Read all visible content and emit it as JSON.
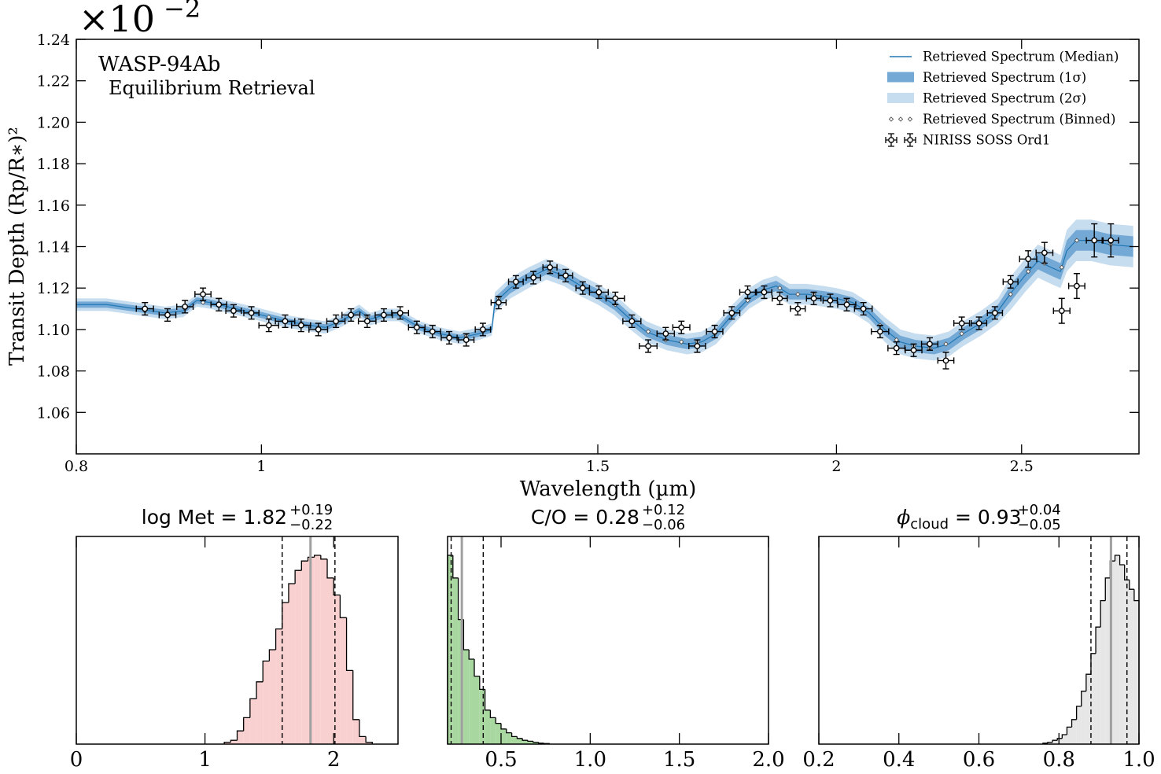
{
  "chart_data": [
    {
      "type": "line",
      "title": "WASP-94Ab",
      "subtitle": "Equilibrium Retrieval",
      "xlabel": "Wavelength (µm)",
      "ylabel": "Transit Depth (Rp/R∗)²",
      "y_offset_base": "×10",
      "y_offset_exponent": "−2",
      "xscale": "log",
      "xlim": [
        0.8,
        2.88
      ],
      "xticks": [
        0.8,
        1,
        1.5,
        2,
        2.5
      ],
      "ylim": [
        1.04,
        1.24
      ],
      "yticks": [
        1.06,
        1.08,
        {
          "value": 1.1,
          "label": "1.10"
        },
        1.12,
        1.14,
        1.16,
        1.18,
        {
          "value": 1.2,
          "label": "1.20"
        },
        1.22,
        1.24
      ],
      "legend": "upper right",
      "x": [
        0.8,
        0.83,
        0.86,
        0.89,
        0.91,
        0.925,
        0.94,
        0.97,
        1.0,
        1.03,
        1.06,
        1.08,
        1.1,
        1.125,
        1.14,
        1.16,
        1.18,
        1.21,
        1.24,
        1.27,
        1.3,
        1.32,
        1.325,
        1.35,
        1.38,
        1.41,
        1.44,
        1.47,
        1.5,
        1.53,
        1.56,
        1.59,
        1.63,
        1.67,
        1.7,
        1.73,
        1.76,
        1.8,
        1.83,
        1.86,
        1.89,
        1.93,
        1.97,
        2.0,
        2.04,
        2.08,
        2.12,
        2.16,
        2.2,
        2.25,
        2.29,
        2.33,
        2.38,
        2.43,
        2.47,
        2.51,
        2.55,
        2.59,
        2.62,
        2.64,
        2.67,
        2.72,
        2.78,
        2.86
      ],
      "series": [
        {
          "name": "Retrieved Spectrum (Median)",
          "color": "#1f77b4",
          "values": [
            1.112,
            1.112,
            1.11,
            1.108,
            1.109,
            1.114,
            1.113,
            1.11,
            1.107,
            1.104,
            1.102,
            1.101,
            1.104,
            1.109,
            1.105,
            1.107,
            1.107,
            1.101,
            1.098,
            1.096,
            1.098,
            1.1,
            1.113,
            1.12,
            1.125,
            1.129,
            1.126,
            1.121,
            1.117,
            1.112,
            1.105,
            1.099,
            1.095,
            1.093,
            1.094,
            1.098,
            1.106,
            1.115,
            1.119,
            1.121,
            1.117,
            1.117,
            1.116,
            1.115,
            1.113,
            1.108,
            1.1,
            1.094,
            1.092,
            1.091,
            1.093,
            1.098,
            1.103,
            1.109,
            1.118,
            1.126,
            1.133,
            1.13,
            1.128,
            1.138,
            1.143,
            1.143,
            1.141,
            1.14
          ]
        },
        {
          "name": "Retrieved Spectrum (1σ)",
          "color": "#74a9d6",
          "upper": [
            1.1135,
            1.1135,
            1.1115,
            1.1095,
            1.1105,
            1.1155,
            1.1145,
            1.1115,
            1.1085,
            1.1055,
            1.1035,
            1.1025,
            1.1055,
            1.1105,
            1.1065,
            1.1085,
            1.1085,
            1.1025,
            1.0995,
            1.0975,
            1.0995,
            1.1015,
            1.1155,
            1.1225,
            1.1275,
            1.1315,
            1.1285,
            1.1235,
            1.1195,
            1.1145,
            1.1075,
            1.1015,
            1.0975,
            1.0955,
            1.0965,
            1.1005,
            1.1085,
            1.1175,
            1.1215,
            1.1235,
            1.1195,
            1.1195,
            1.1185,
            1.1175,
            1.1155,
            1.1105,
            1.103,
            1.097,
            1.095,
            1.094,
            1.096,
            1.101,
            1.106,
            1.112,
            1.122,
            1.13,
            1.137,
            1.134,
            1.132,
            1.143,
            1.148,
            1.148,
            1.146,
            1.145
          ],
          "lower": [
            1.1105,
            1.1105,
            1.1085,
            1.1065,
            1.1075,
            1.1125,
            1.1115,
            1.1085,
            1.1055,
            1.1025,
            1.1005,
            1.0995,
            1.1025,
            1.1075,
            1.1035,
            1.1055,
            1.1055,
            1.0995,
            1.0965,
            1.0945,
            1.0965,
            1.0985,
            1.1105,
            1.1175,
            1.1225,
            1.1265,
            1.1235,
            1.1185,
            1.1145,
            1.1095,
            1.1025,
            1.0965,
            1.0925,
            1.0905,
            1.0915,
            1.0955,
            1.1035,
            1.1125,
            1.1165,
            1.1185,
            1.1145,
            1.1145,
            1.1135,
            1.1125,
            1.1105,
            1.1055,
            1.097,
            1.091,
            1.089,
            1.088,
            1.09,
            1.095,
            1.1,
            1.106,
            1.114,
            1.122,
            1.129,
            1.126,
            1.124,
            1.133,
            1.138,
            1.138,
            1.136,
            1.135
          ]
        },
        {
          "name": "Retrieved Spectrum (2σ)",
          "color": "#c6dcef",
          "upper": [
            1.115,
            1.115,
            1.113,
            1.111,
            1.112,
            1.117,
            1.116,
            1.113,
            1.11,
            1.107,
            1.105,
            1.104,
            1.107,
            1.112,
            1.108,
            1.11,
            1.11,
            1.104,
            1.101,
            1.099,
            1.101,
            1.103,
            1.118,
            1.125,
            1.13,
            1.134,
            1.131,
            1.126,
            1.122,
            1.117,
            1.11,
            1.104,
            1.1,
            1.098,
            1.099,
            1.103,
            1.111,
            1.12,
            1.124,
            1.126,
            1.122,
            1.122,
            1.121,
            1.12,
            1.118,
            1.113,
            1.106,
            1.1,
            1.098,
            1.097,
            1.099,
            1.104,
            1.109,
            1.115,
            1.126,
            1.134,
            1.141,
            1.138,
            1.136,
            1.148,
            1.153,
            1.153,
            1.151,
            1.15
          ],
          "lower": [
            1.109,
            1.109,
            1.107,
            1.105,
            1.106,
            1.111,
            1.11,
            1.107,
            1.104,
            1.101,
            1.099,
            1.098,
            1.101,
            1.106,
            1.102,
            1.104,
            1.104,
            1.098,
            1.095,
            1.093,
            1.095,
            1.097,
            1.108,
            1.115,
            1.12,
            1.124,
            1.121,
            1.116,
            1.112,
            1.107,
            1.1,
            1.094,
            1.09,
            1.088,
            1.089,
            1.093,
            1.101,
            1.11,
            1.114,
            1.116,
            1.112,
            1.112,
            1.111,
            1.11,
            1.108,
            1.103,
            1.094,
            1.088,
            1.086,
            1.085,
            1.087,
            1.092,
            1.097,
            1.103,
            1.11,
            1.118,
            1.125,
            1.122,
            1.12,
            1.128,
            1.133,
            1.133,
            1.131,
            1.13
          ]
        },
        {
          "name": "Retrieved Spectrum (Binned)",
          "color": "#555555",
          "x": [
            0.869,
            0.893,
            0.912,
            0.932,
            0.95,
            0.967,
            0.988,
            1.009,
            1.029,
            1.049,
            1.071,
            1.094,
            1.114,
            1.136,
            1.159,
            1.182,
            1.206,
            1.229,
            1.254,
            1.28,
            1.306,
            1.331,
            1.359,
            1.388,
            1.416,
            1.443,
            1.473,
            1.502,
            1.532,
            1.563,
            1.594,
            1.628,
            1.659,
            1.691,
            1.727,
            1.763,
            1.797,
            1.833,
            1.868,
            1.909,
            1.946,
            1.985,
            2.025,
            2.066,
            2.108,
            2.15,
            2.195,
            2.238,
            2.282,
            2.326,
            2.375,
            2.421,
            2.467,
            2.52,
            2.57,
            2.624,
            2.672,
            2.729,
            2.784
          ],
          "values": [
            1.109,
            1.108,
            1.11,
            1.113,
            1.112,
            1.11,
            1.108,
            1.106,
            1.104,
            1.103,
            1.101,
            1.103,
            1.107,
            1.106,
            1.107,
            1.107,
            1.102,
            1.099,
            1.097,
            1.097,
            1.099,
            1.115,
            1.122,
            1.126,
            1.128,
            1.126,
            1.121,
            1.117,
            1.112,
            1.104,
            1.099,
            1.095,
            1.094,
            1.094,
            1.098,
            1.107,
            1.114,
            1.119,
            1.12,
            1.117,
            1.117,
            1.115,
            1.114,
            1.11,
            1.102,
            1.095,
            1.092,
            1.091,
            1.093,
            1.098,
            1.103,
            1.108,
            1.117,
            1.128,
            1.132,
            1.13,
            1.143,
            1.143,
            1.141
          ]
        },
        {
          "name": "NIRISS SOSS Ord1",
          "color": "#000000",
          "x": [
            0.869,
            0.893,
            0.912,
            0.932,
            0.95,
            0.967,
            0.988,
            1.009,
            1.029,
            1.049,
            1.071,
            1.094,
            1.114,
            1.136,
            1.159,
            1.182,
            1.206,
            1.229,
            1.254,
            1.28,
            1.306,
            1.331,
            1.359,
            1.388,
            1.416,
            1.443,
            1.473,
            1.502,
            1.532,
            1.563,
            1.594,
            1.628,
            1.659,
            1.691,
            1.727,
            1.763,
            1.797,
            1.833,
            1.868,
            1.909,
            1.946,
            1.985,
            2.025,
            2.066,
            2.108,
            2.15,
            2.195,
            2.238,
            2.282,
            2.326,
            2.375,
            2.421,
            2.467,
            2.52,
            2.57,
            2.624,
            2.672,
            2.729,
            2.784
          ],
          "values": [
            1.11,
            1.107,
            1.111,
            1.117,
            1.112,
            1.109,
            1.108,
            1.102,
            1.104,
            1.102,
            1.1,
            1.104,
            1.107,
            1.104,
            1.107,
            1.108,
            1.101,
            1.099,
            1.096,
            1.095,
            1.1,
            1.113,
            1.123,
            1.125,
            1.13,
            1.126,
            1.12,
            1.118,
            1.115,
            1.104,
            1.092,
            1.098,
            1.101,
            1.092,
            1.099,
            1.108,
            1.118,
            1.118,
            1.115,
            1.11,
            1.115,
            1.114,
            1.112,
            1.11,
            1.099,
            1.091,
            1.09,
            1.093,
            1.085,
            1.103,
            1.103,
            1.108,
            1.123,
            1.134,
            1.137,
            1.109,
            1.121,
            1.143,
            1.143
          ],
          "xerr": [
            0.009,
            0.009,
            0.009,
            0.009,
            0.009,
            0.009,
            0.009,
            0.012,
            0.012,
            0.012,
            0.012,
            0.012,
            0.012,
            0.012,
            0.012,
            0.012,
            0.012,
            0.012,
            0.012,
            0.012,
            0.012,
            0.012,
            0.012,
            0.012,
            0.012,
            0.012,
            0.012,
            0.017,
            0.017,
            0.017,
            0.017,
            0.017,
            0.017,
            0.017,
            0.017,
            0.017,
            0.017,
            0.017,
            0.017,
            0.017,
            0.017,
            0.017,
            0.022,
            0.022,
            0.022,
            0.022,
            0.022,
            0.022,
            0.022,
            0.022,
            0.022,
            0.022,
            0.022,
            0.026,
            0.026,
            0.026,
            0.026,
            0.026,
            0.026
          ],
          "yerr": [
            0.003,
            0.003,
            0.003,
            0.003,
            0.003,
            0.003,
            0.003,
            0.003,
            0.003,
            0.003,
            0.003,
            0.003,
            0.003,
            0.003,
            0.003,
            0.003,
            0.003,
            0.003,
            0.003,
            0.003,
            0.003,
            0.003,
            0.003,
            0.003,
            0.003,
            0.003,
            0.003,
            0.003,
            0.003,
            0.003,
            0.003,
            0.003,
            0.003,
            0.003,
            0.003,
            0.003,
            0.003,
            0.003,
            0.003,
            0.003,
            0.003,
            0.003,
            0.003,
            0.003,
            0.003,
            0.003,
            0.003,
            0.003,
            0.004,
            0.003,
            0.003,
            0.003,
            0.003,
            0.004,
            0.005,
            0.006,
            0.006,
            0.008,
            0.008
          ]
        }
      ]
    },
    {
      "type": "histogram",
      "title": "log Met = 1.82",
      "title_upper": "+0.19",
      "title_lower": "−0.22",
      "color": "#f9d0d0",
      "bins": [
        1.15,
        1.2,
        1.25,
        1.3,
        1.35,
        1.4,
        1.45,
        1.5,
        1.55,
        1.6,
        1.65,
        1.7,
        1.75,
        1.8,
        1.85,
        1.9,
        1.95,
        2.0,
        2.05,
        2.1,
        2.15,
        2.2,
        2.25,
        2.3
      ],
      "values": [
        1,
        2,
        7,
        14,
        24,
        33,
        44,
        50,
        61,
        75,
        85,
        92,
        97,
        99,
        100,
        98,
        88,
        79,
        67,
        39,
        13,
        4,
        1
      ],
      "median": 1.82,
      "interval": [
        1.6,
        2.01
      ],
      "xlim": [
        0,
        2.5
      ],
      "xticks": [
        0,
        1,
        2
      ],
      "ylim": [
        0,
        110
      ]
    },
    {
      "type": "histogram",
      "title": "C/O = 0.28",
      "title_upper": "+0.12",
      "title_lower": "−0.06",
      "color": "#a8d8a0",
      "bins": [
        0.2,
        0.23,
        0.26,
        0.29,
        0.32,
        0.35,
        0.38,
        0.41,
        0.44,
        0.47,
        0.5,
        0.53,
        0.56,
        0.59,
        0.62,
        0.65,
        0.68,
        0.71,
        0.74,
        0.77
      ],
      "values": [
        100,
        88,
        66,
        50,
        45,
        36,
        29,
        18,
        14,
        11,
        8,
        6,
        4,
        3,
        2,
        1.5,
        1,
        0.5,
        0.3
      ],
      "median": 0.28,
      "interval": [
        0.22,
        0.4
      ],
      "xlim": [
        0.2,
        2.0
      ],
      "xticks": [
        0.5,
        {
          "value": 1,
          "label": "1.0"
        },
        1.5,
        {
          "value": 2,
          "label": "2.0"
        }
      ],
      "ylim": [
        0,
        110
      ]
    },
    {
      "type": "histogram",
      "title_symbol": "ϕ",
      "title_symbol_sub": "cloud",
      "title": "= 0.93",
      "title_upper": "+0.04",
      "title_lower": "−0.05",
      "color": "#e6e6e6",
      "bins": [
        0.76,
        0.772,
        0.784,
        0.796,
        0.808,
        0.82,
        0.832,
        0.844,
        0.856,
        0.868,
        0.88,
        0.892,
        0.904,
        0.916,
        0.928,
        0.94,
        0.952,
        0.964,
        0.976,
        0.988,
        1.0
      ],
      "values": [
        0.5,
        1,
        2,
        3,
        5,
        9,
        13,
        20,
        28,
        37,
        48,
        62,
        76,
        88,
        97,
        100,
        95,
        87,
        82,
        76
      ],
      "median": 0.93,
      "interval": [
        0.88,
        0.97
      ],
      "xlim": [
        0.2,
        1.0
      ],
      "xticks": [
        0.2,
        0.4,
        0.6,
        0.8,
        {
          "value": 1,
          "label": "1.0"
        }
      ],
      "ylim": [
        0,
        110
      ]
    }
  ]
}
